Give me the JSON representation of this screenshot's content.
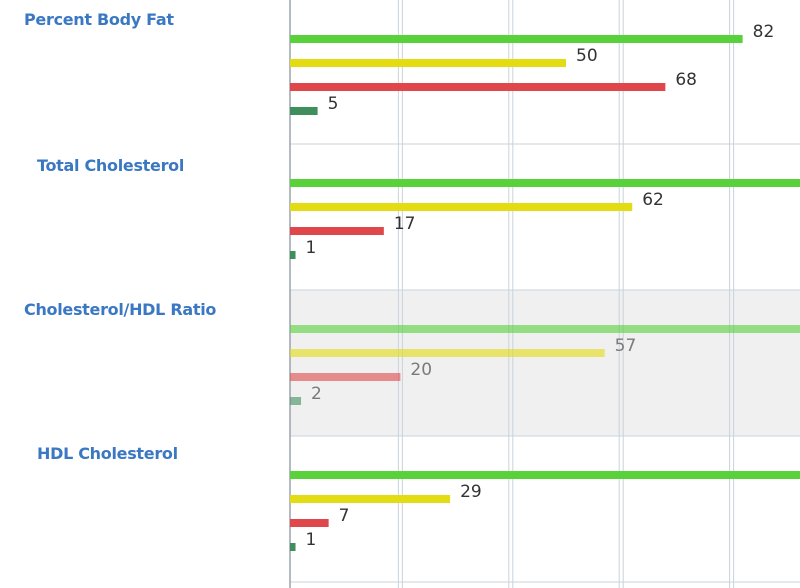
{
  "colors": {
    "label_blue": "#3b78c3",
    "green": "#59d13a",
    "yellow": "#e3dc12",
    "red": "#e0474a",
    "dark_green": "#3f8f5d",
    "grid": "#c9d3dc",
    "axis": "#9aa3ab",
    "highlight_band": "#f0f0f0",
    "value_text": "#333333",
    "value_text_muted": "#7a7a7a"
  },
  "chart_data": {
    "type": "bar",
    "orientation": "horizontal",
    "categories": [
      "Percent Body Fat",
      "Total Cholesterol",
      "Cholesterol/HDL Ratio",
      "HDL Cholesterol"
    ],
    "series": [
      {
        "color": "#59d13a",
        "values": [
          82,
          null,
          null,
          null
        ]
      },
      {
        "color": "#e3dc12",
        "values": [
          50,
          62,
          57,
          29
        ]
      },
      {
        "color": "#e0474a",
        "values": [
          68,
          17,
          20,
          7
        ]
      },
      {
        "color": "#3f8f5d",
        "values": [
          5,
          1,
          2,
          1
        ]
      }
    ],
    "highlighted_category_index": 2,
    "grid": true
  }
}
